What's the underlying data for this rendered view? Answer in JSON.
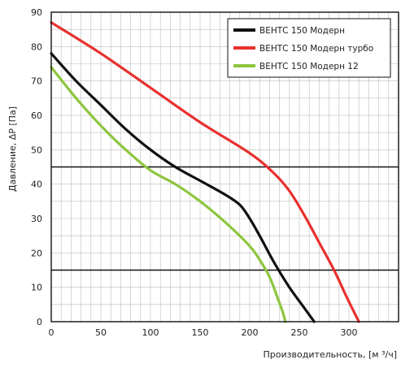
{
  "chart_data": {
    "type": "line",
    "xlabel": "Производительность, [м ³/ч]",
    "ylabel": "Давление, ΔP [Па]",
    "xlim": [
      0,
      350
    ],
    "ylim": [
      0,
      90
    ],
    "x_ticks": [
      0,
      50,
      100,
      150,
      200,
      250,
      300
    ],
    "y_ticks": [
      0,
      10,
      20,
      30,
      40,
      50,
      60,
      70,
      80,
      90
    ],
    "grid": "major lines at y = 15, 45; minor gridlines every 5 Pa and every 10 m³/h",
    "reference_lines_y": [
      15,
      45
    ],
    "legend_position": "top-right",
    "series": [
      {
        "name": "ВЕНТС 150 Модерн",
        "color": "#111111",
        "points": [
          [
            0,
            78
          ],
          [
            25,
            70
          ],
          [
            50,
            63
          ],
          [
            75,
            56
          ],
          [
            100,
            50
          ],
          [
            125,
            45
          ],
          [
            150,
            41
          ],
          [
            175,
            37
          ],
          [
            190,
            34
          ],
          [
            200,
            30
          ],
          [
            210,
            25
          ],
          [
            225,
            17
          ],
          [
            240,
            10
          ],
          [
            255,
            4
          ],
          [
            265,
            0
          ]
        ]
      },
      {
        "name": "ВЕНТС 150 Модерн турбо",
        "color": "#e8312f",
        "points": [
          [
            0,
            87
          ],
          [
            50,
            78
          ],
          [
            100,
            68
          ],
          [
            150,
            58
          ],
          [
            200,
            49
          ],
          [
            225,
            43
          ],
          [
            240,
            38
          ],
          [
            255,
            31
          ],
          [
            270,
            23
          ],
          [
            285,
            15
          ],
          [
            298,
            7
          ],
          [
            310,
            0
          ]
        ]
      },
      {
        "name": "ВЕНТС 150 Модерн 12",
        "color": "#8dc63f",
        "points": [
          [
            0,
            74
          ],
          [
            25,
            65
          ],
          [
            50,
            57
          ],
          [
            75,
            50
          ],
          [
            100,
            44
          ],
          [
            125,
            40
          ],
          [
            150,
            35
          ],
          [
            175,
            29
          ],
          [
            200,
            22
          ],
          [
            210,
            18
          ],
          [
            220,
            13
          ],
          [
            228,
            7
          ],
          [
            233,
            3
          ],
          [
            236,
            0
          ]
        ]
      }
    ]
  }
}
